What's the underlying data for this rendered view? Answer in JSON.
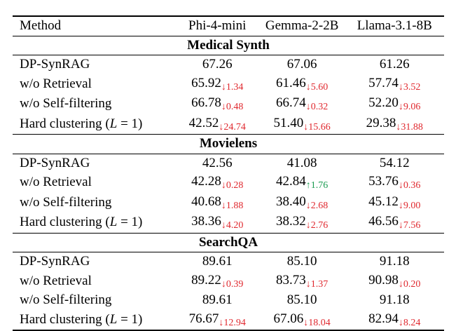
{
  "header": {
    "method": "Method",
    "models": [
      "Phi-4-mini",
      "Gemma-2-2B",
      "Llama-3.1-8B"
    ]
  },
  "sections": [
    {
      "title": "Medical Synth",
      "rows": [
        {
          "method": "DP-SynRAG",
          "hc": false,
          "cells": [
            {
              "v": "67.26",
              "d": ""
            },
            {
              "v": "67.06",
              "d": ""
            },
            {
              "v": "61.26",
              "d": ""
            }
          ]
        },
        {
          "method": "w/o Retrieval",
          "hc": false,
          "cells": [
            {
              "v": "65.92",
              "d": "↓1.34",
              "dir": "down"
            },
            {
              "v": "61.46",
              "d": "↓5.60",
              "dir": "down"
            },
            {
              "v": "57.74",
              "d": "↓3.52",
              "dir": "down"
            }
          ]
        },
        {
          "method": "w/o Self-filtering",
          "hc": false,
          "cells": [
            {
              "v": "66.78",
              "d": "↓0.48",
              "dir": "down"
            },
            {
              "v": "66.74",
              "d": "↓0.32",
              "dir": "down"
            },
            {
              "v": "52.20",
              "d": "↓9.06",
              "dir": "down"
            }
          ]
        },
        {
          "method": "Hard clustering (",
          "hc": true,
          "cells": [
            {
              "v": "42.52",
              "d": "↓24.74",
              "dir": "down"
            },
            {
              "v": "51.40",
              "d": "↓15.66",
              "dir": "down"
            },
            {
              "v": "29.38",
              "d": "↓31.88",
              "dir": "down"
            }
          ]
        }
      ]
    },
    {
      "title": "Movielens",
      "rows": [
        {
          "method": "DP-SynRAG",
          "hc": false,
          "cells": [
            {
              "v": "42.56",
              "d": ""
            },
            {
              "v": "41.08",
              "d": ""
            },
            {
              "v": "54.12",
              "d": ""
            }
          ]
        },
        {
          "method": "w/o Retrieval",
          "hc": false,
          "cells": [
            {
              "v": "42.28",
              "d": "↓0.28",
              "dir": "down"
            },
            {
              "v": "42.84",
              "d": "↑1.76",
              "dir": "up"
            },
            {
              "v": "53.76",
              "d": "↓0.36",
              "dir": "down"
            }
          ]
        },
        {
          "method": "w/o Self-filtering",
          "hc": false,
          "cells": [
            {
              "v": "40.68",
              "d": "↓1.88",
              "dir": "down"
            },
            {
              "v": "38.40",
              "d": "↓2.68",
              "dir": "down"
            },
            {
              "v": "45.12",
              "d": "↓9.00",
              "dir": "down"
            }
          ]
        },
        {
          "method": "Hard clustering (",
          "hc": true,
          "cells": [
            {
              "v": "38.36",
              "d": "↓4.20",
              "dir": "down"
            },
            {
              "v": "38.32",
              "d": "↓2.76",
              "dir": "down"
            },
            {
              "v": "46.56",
              "d": "↓7.56",
              "dir": "down"
            }
          ]
        }
      ]
    },
    {
      "title": "SearchQA",
      "rows": [
        {
          "method": "DP-SynRAG",
          "hc": false,
          "cells": [
            {
              "v": "89.61",
              "d": ""
            },
            {
              "v": "85.10",
              "d": ""
            },
            {
              "v": "91.18",
              "d": ""
            }
          ]
        },
        {
          "method": "w/o Retrieval",
          "hc": false,
          "cells": [
            {
              "v": "89.22",
              "d": "↓0.39",
              "dir": "down"
            },
            {
              "v": "83.73",
              "d": "↓1.37",
              "dir": "down"
            },
            {
              "v": "90.98",
              "d": "↓0.20",
              "dir": "down"
            }
          ]
        },
        {
          "method": "w/o Self-filtering",
          "hc": false,
          "cells": [
            {
              "v": "89.61",
              "d": ""
            },
            {
              "v": "85.10",
              "d": ""
            },
            {
              "v": "91.18",
              "d": ""
            }
          ]
        },
        {
          "method": "Hard clustering (",
          "hc": true,
          "cells": [
            {
              "v": "76.67",
              "d": "↓12.94",
              "dir": "down"
            },
            {
              "v": "67.06",
              "d": "↓18.04",
              "dir": "down"
            },
            {
              "v": "82.94",
              "d": "↓8.24",
              "dir": "down"
            }
          ]
        }
      ]
    }
  ],
  "hc_symbol": "L",
  "hc_rest": " = 1)"
}
